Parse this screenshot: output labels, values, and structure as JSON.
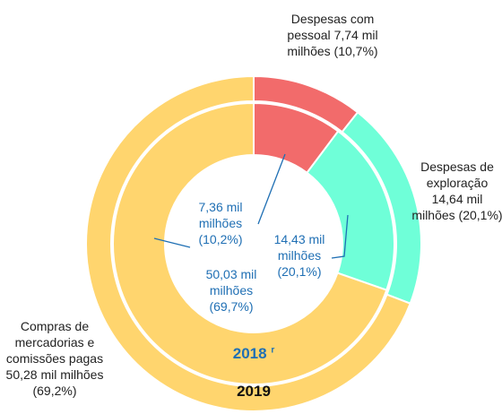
{
  "chart_data": {
    "type": "nested-donut",
    "categories": [
      "Despesas com pessoal",
      "Despesas de exploração",
      "Compras de mercadorias e comissões pagas"
    ],
    "colors": [
      "#f26b6b",
      "#6fffd8",
      "#ffd56e"
    ],
    "series": [
      {
        "name": "2019",
        "values": [
          7.74,
          14.64,
          50.28
        ],
        "value_labels": [
          "7,74 mil milhões (10,7%)",
          "14,64 mil milhões (20,1%)",
          "50,28 mil milhões (69,2%)"
        ]
      },
      {
        "name": "2018",
        "superscript": "r",
        "values": [
          7.36,
          14.43,
          50.03
        ],
        "value_labels": [
          "7,36 mil milhões (10,2%)",
          "14,43 mil milhões (20,1%)",
          "50,03 mil milhões (69,7%)"
        ]
      }
    ]
  }
}
